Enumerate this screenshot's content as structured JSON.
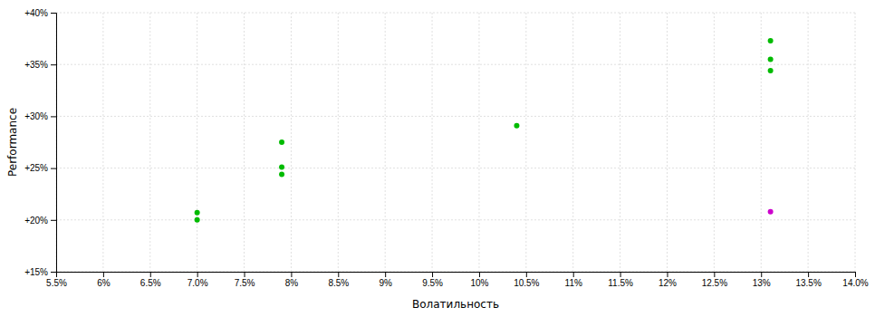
{
  "chart_data": {
    "type": "scatter",
    "xlabel": "Волатильность",
    "ylabel": "Performance",
    "xlim": [
      0.055,
      0.14
    ],
    "ylim": [
      0.15,
      0.4
    ],
    "xticks": [
      {
        "value": 0.055,
        "label": "5.5%"
      },
      {
        "value": 0.06,
        "label": "6%"
      },
      {
        "value": 0.065,
        "label": "6.5%"
      },
      {
        "value": 0.07,
        "label": "7.0%"
      },
      {
        "value": 0.075,
        "label": "7.5%"
      },
      {
        "value": 0.08,
        "label": "8%"
      },
      {
        "value": 0.085,
        "label": "8.5%"
      },
      {
        "value": 0.09,
        "label": "9%"
      },
      {
        "value": 0.095,
        "label": "9.5%"
      },
      {
        "value": 0.1,
        "label": "10%"
      },
      {
        "value": 0.105,
        "label": "10.5%"
      },
      {
        "value": 0.11,
        "label": "11%"
      },
      {
        "value": 0.115,
        "label": "11.5%"
      },
      {
        "value": 0.12,
        "label": "12%"
      },
      {
        "value": 0.125,
        "label": "12.5%"
      },
      {
        "value": 0.13,
        "label": "13%"
      },
      {
        "value": 0.135,
        "label": "13.5%"
      },
      {
        "value": 0.14,
        "label": "14.0%"
      }
    ],
    "yticks": [
      {
        "value": 0.15,
        "label": "+15%"
      },
      {
        "value": 0.2,
        "label": "+20%"
      },
      {
        "value": 0.25,
        "label": "+25%"
      },
      {
        "value": 0.3,
        "label": "+30%"
      },
      {
        "value": 0.35,
        "label": "+35%"
      },
      {
        "value": 0.4,
        "label": "+40%"
      }
    ],
    "grid": true,
    "series": [
      {
        "color": "#00bb00",
        "x": [
          0.07,
          0.07,
          0.079,
          0.079,
          0.079,
          0.104,
          0.131,
          0.131,
          0.131
        ],
        "values": [
          0.207,
          0.2,
          0.275,
          0.251,
          0.244,
          0.291,
          0.373,
          0.355,
          0.344
        ]
      },
      {
        "color": "#cc00cc",
        "x": [
          0.131
        ],
        "values": [
          0.208
        ]
      }
    ]
  }
}
